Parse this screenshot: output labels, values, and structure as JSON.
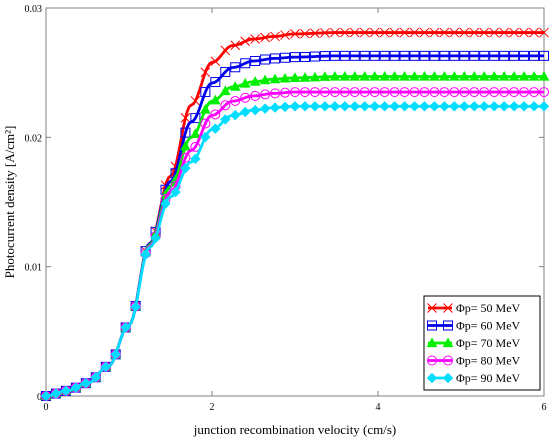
{
  "chart_data": {
    "type": "line",
    "title": "",
    "xlabel": "junction recombination velocity (cm/s)",
    "ylabel": "Photocurrent density [A/cm²]",
    "xlim": [
      0,
      6
    ],
    "ylim": [
      0,
      0.03
    ],
    "x_ticks": [
      "0",
      "2",
      "4",
      "6"
    ],
    "y_ticks": [
      "0",
      "0.01",
      "0.02",
      "0.03"
    ],
    "grid": false,
    "legend_position": "bottom-right",
    "x": [
      0,
      0.25,
      0.5,
      0.75,
      1.0,
      1.25,
      1.5,
      1.75,
      2.0,
      2.25,
      2.5,
      2.75,
      3.0,
      3.5,
      4.0,
      4.5,
      5.0,
      5.5,
      6.0
    ],
    "series": [
      {
        "name": "Φp= 50 MeV",
        "color": "#ff0000",
        "marker": "x-cross",
        "values": [
          0,
          0.0004,
          0.001,
          0.0023,
          0.0055,
          0.0118,
          0.017,
          0.0225,
          0.0258,
          0.0271,
          0.0276,
          0.0278,
          0.028,
          0.0281,
          0.0281,
          0.0281,
          0.0281,
          0.0281,
          0.0281
        ]
      },
      {
        "name": "Φp= 60 MeV",
        "color": "#0000ee",
        "marker": "square",
        "values": [
          0,
          0.0004,
          0.001,
          0.0023,
          0.0055,
          0.0118,
          0.0166,
          0.0212,
          0.0242,
          0.0254,
          0.0259,
          0.0261,
          0.0262,
          0.0263,
          0.0263,
          0.0263,
          0.0263,
          0.0263,
          0.0263
        ]
      },
      {
        "name": "Φp= 70 MeV",
        "color": "#00ee00",
        "marker": "triangle",
        "values": [
          0,
          0.0004,
          0.001,
          0.0023,
          0.0055,
          0.0117,
          0.0162,
          0.02,
          0.0228,
          0.0239,
          0.0243,
          0.0245,
          0.0246,
          0.0247,
          0.0247,
          0.0247,
          0.0247,
          0.0247,
          0.0247
        ]
      },
      {
        "name": "Φp= 80 MeV",
        "color": "#ff00ff",
        "marker": "circle",
        "values": [
          0,
          0.0004,
          0.001,
          0.0023,
          0.0055,
          0.0116,
          0.0158,
          0.019,
          0.0217,
          0.0228,
          0.0232,
          0.0234,
          0.0235,
          0.0235,
          0.0235,
          0.0235,
          0.0235,
          0.0235,
          0.0235
        ]
      },
      {
        "name": "Φp= 90 MeV",
        "color": "#00ddff",
        "marker": "diamond",
        "values": [
          0,
          0.0004,
          0.001,
          0.0023,
          0.0055,
          0.0115,
          0.0154,
          0.0181,
          0.0206,
          0.0217,
          0.0221,
          0.0223,
          0.0224,
          0.0224,
          0.0224,
          0.0224,
          0.0224,
          0.0224,
          0.0224
        ]
      }
    ]
  }
}
